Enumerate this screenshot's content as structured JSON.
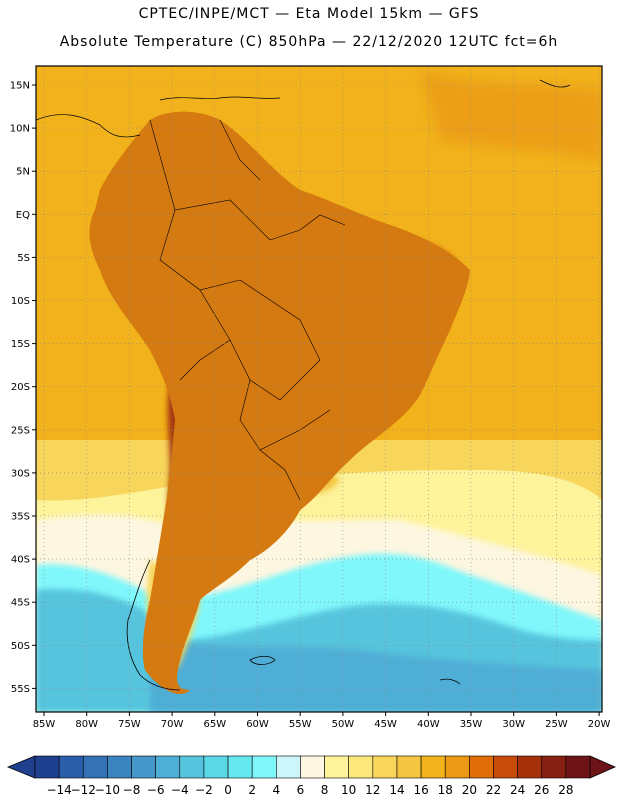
{
  "header": {
    "title_line1": "CPTEC/INPE/MCT —  Eta Model 15km — GFS",
    "title_line2": "Absolute Temperature (C) 850hPa — 22/12/2020 12UTC fct=6h"
  },
  "map": {
    "lat_labels": [
      "15N",
      "10N",
      "5N",
      "EQ",
      "5S",
      "10S",
      "15S",
      "20S",
      "25S",
      "30S",
      "35S",
      "40S",
      "45S",
      "50S",
      "55S"
    ],
    "lon_labels": [
      "85W",
      "80W",
      "75W",
      "70W",
      "65W",
      "60W",
      "55W",
      "50W",
      "45W",
      "40W",
      "35W",
      "30W",
      "25W",
      "20W"
    ]
  },
  "colorbar": {
    "labels": [
      "-14",
      "-12",
      "-10",
      "-8",
      "-6",
      "-4",
      "-2",
      "0",
      "2",
      "4",
      "6",
      "8",
      "10",
      "12",
      "14",
      "16",
      "18",
      "20",
      "22",
      "24",
      "26",
      "28"
    ],
    "colors": [
      "#1f3f8f",
      "#2a5ea8",
      "#3471b5",
      "#3c84c0",
      "#4597c9",
      "#4faed5",
      "#56c4dd",
      "#5bd8e6",
      "#66e8f0",
      "#7ff7fb",
      "#cdf6fb",
      "#fdf6e0",
      "#fdf39a",
      "#fbe77a",
      "#f8d65c",
      "#f3c540",
      "#f1b21b",
      "#eb9a16",
      "#df6e09",
      "#c84b0a",
      "#a6320b",
      "#852012",
      "#6e1418"
    ]
  },
  "palette": {
    "hot": "#a6320b",
    "warm": "#d47a10",
    "orange": "#e8a020",
    "yellow": "#f1b21b",
    "pale_yellow": "#f8d65c",
    "cream": "#fdf6e0",
    "light_cyan": "#7ff7fb",
    "cyan": "#56c4dd",
    "blue": "#4597c9"
  }
}
